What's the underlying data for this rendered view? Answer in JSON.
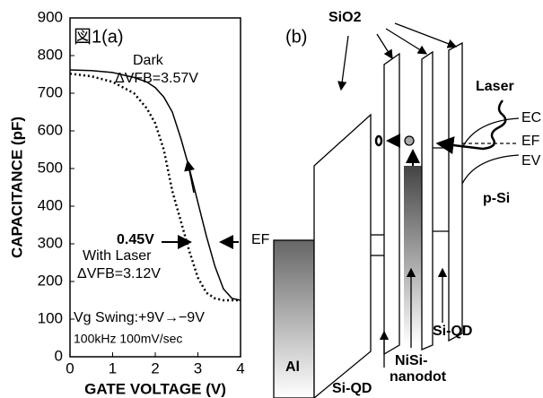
{
  "chart_data": {
    "type": "line",
    "title": "図1(a)",
    "x_label": "GATE VOLTAGE (V)",
    "y_label": "CAPACITANCE (pF)",
    "x": [
      0,
      0.5,
      1,
      1.5,
      1.8,
      2,
      2.2,
      2.4,
      2.6,
      2.8,
      3,
      3.2,
      3.4,
      3.6,
      3.8,
      4
    ],
    "series": [
      {
        "name": "Dark",
        "color": "#000000",
        "style": "solid",
        "values": [
          762,
          760,
          755,
          742,
          730,
          715,
          690,
          650,
          580,
          500,
          410,
          320,
          240,
          180,
          155,
          150
        ]
      },
      {
        "name": "With Laser",
        "color": "#000000",
        "style": "dotted",
        "values": [
          752,
          745,
          730,
          700,
          660,
          620,
          550,
          440,
          360,
          280,
          210,
          170,
          155,
          150,
          150,
          150
        ]
      }
    ],
    "xlim": [
      0,
      4
    ],
    "ylim": [
      0,
      900
    ],
    "xticks": [
      0,
      1,
      2,
      3,
      4
    ],
    "yticks": [
      0,
      100,
      200,
      300,
      400,
      500,
      600,
      700,
      800,
      900
    ],
    "annotations": [
      "ΔVFB=3.57V",
      "0.45V",
      "ΔVFB=3.12V",
      "Vg Swing:+9V→−9V",
      "100kHz 100mV/sec"
    ]
  },
  "diagram": {
    "label": "(b)",
    "oxide": "SiO2",
    "laser": "Laser",
    "bands": [
      "EC",
      "EF",
      "EV"
    ],
    "substrate": "p-Si",
    "metal_fermi": "EF",
    "metal": "Al",
    "nanodot": [
      "NiSi-",
      "nanodot"
    ],
    "dots": [
      "Si-QD",
      "Si-QD"
    ]
  }
}
